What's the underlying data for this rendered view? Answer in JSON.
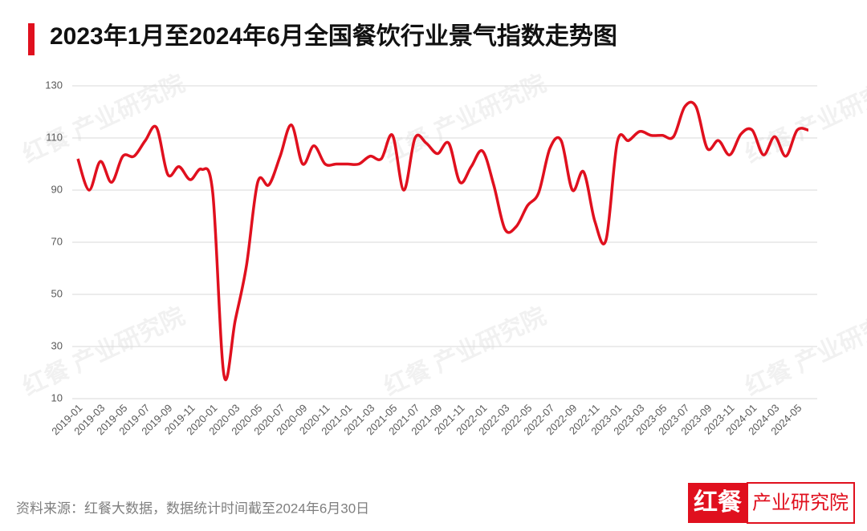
{
  "chart_data": {
    "type": "line",
    "title": "2023年1月至2024年6月全国餐饮行业景气指数走势图",
    "source": "资料来源：红餐大数据，数据统计时间截至2024年6月30日",
    "logo": [
      "红餐",
      "产业研究院"
    ],
    "watermark": "红餐 产业研究院",
    "categories": [
      "2019-01",
      null,
      "2019-03",
      null,
      "2019-05",
      null,
      "2019-07",
      null,
      "2019-09",
      null,
      "2019-11",
      null,
      "2020-01",
      null,
      "2020-03",
      null,
      "2020-05",
      null,
      "2020-07",
      null,
      "2020-09",
      null,
      "2020-11",
      null,
      "2021-01",
      null,
      "2021-03",
      null,
      "2021-05",
      null,
      "2021-07",
      null,
      "2021-09",
      null,
      "2021-11",
      null,
      "2022-01",
      null,
      "2022-03",
      null,
      "2022-05",
      null,
      "2022-07",
      null,
      "2022-09",
      null,
      "2022-11",
      null,
      "2023-01",
      null,
      "2023-03",
      null,
      "2023-05",
      null,
      "2023-07",
      null,
      "2023-09",
      null,
      "2023-11",
      null,
      "2024-01",
      null,
      "2024-03",
      null,
      "2024-05",
      null
    ],
    "values": [
      102,
      90,
      101,
      93,
      103,
      103,
      109,
      114,
      96,
      99,
      94,
      98,
      89,
      19,
      40,
      61,
      93,
      92,
      103,
      115,
      100,
      107,
      100,
      100,
      100,
      100,
      103,
      102,
      111,
      90,
      110,
      108,
      104,
      108,
      93,
      99,
      105,
      92,
      75,
      76,
      84,
      89,
      106,
      109,
      90,
      97,
      78,
      71,
      108.5,
      109,
      112.5,
      111,
      111,
      110.5,
      122,
      122,
      106,
      109,
      103.5,
      111.5,
      113,
      103.5,
      110.5,
      103,
      113,
      113
    ],
    "color": "#e0101e",
    "ylim": [
      10,
      130
    ],
    "yticks": [
      10,
      30,
      50,
      70,
      90,
      110,
      130
    ],
    "grid": true
  }
}
